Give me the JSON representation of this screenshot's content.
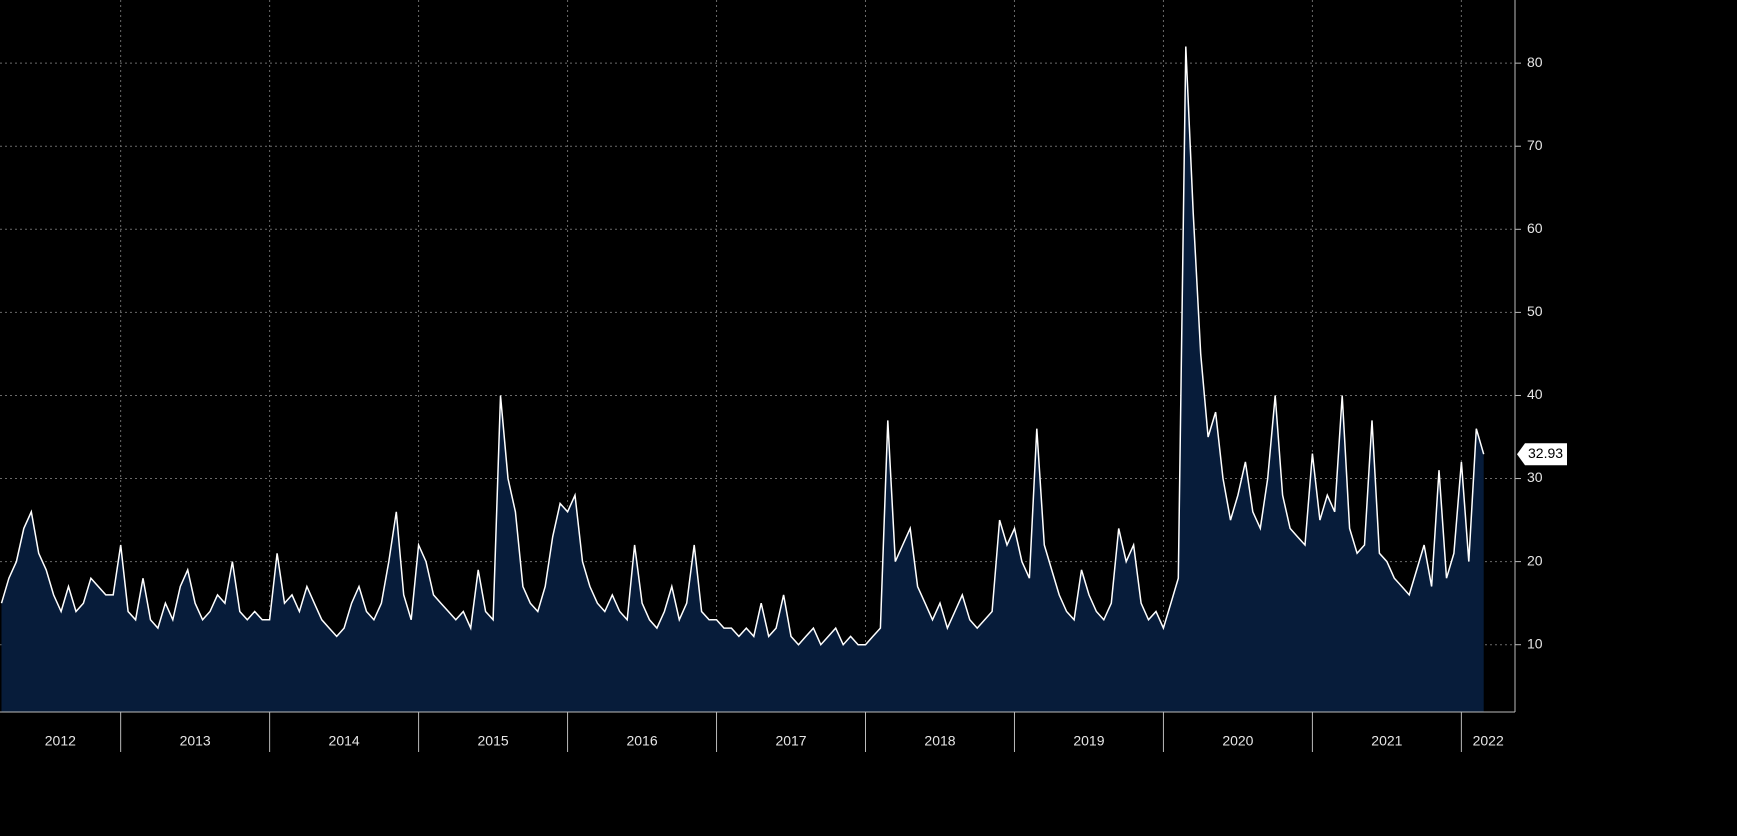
{
  "chart_data": {
    "type": "area",
    "x": [
      2012.2,
      2012.25,
      2012.3,
      2012.35,
      2012.4,
      2012.45,
      2012.5,
      2012.55,
      2012.6,
      2012.65,
      2012.7,
      2012.75,
      2012.8,
      2012.85,
      2012.9,
      2012.95,
      2013,
      2013.05,
      2013.1,
      2013.15,
      2013.2,
      2013.25,
      2013.3,
      2013.35,
      2013.4,
      2013.45,
      2013.5,
      2013.55,
      2013.6,
      2013.65,
      2013.7,
      2013.75,
      2013.8,
      2013.85,
      2013.9,
      2013.95,
      2014,
      2014.05,
      2014.1,
      2014.15,
      2014.2,
      2014.25,
      2014.3,
      2014.35,
      2014.4,
      2014.45,
      2014.5,
      2014.55,
      2014.6,
      2014.65,
      2014.7,
      2014.75,
      2014.8,
      2014.85,
      2014.9,
      2014.95,
      2015,
      2015.05,
      2015.1,
      2015.15,
      2015.2,
      2015.25,
      2015.3,
      2015.35,
      2015.4,
      2015.45,
      2015.5,
      2015.55,
      2015.6,
      2015.65,
      2015.7,
      2015.75,
      2015.8,
      2015.85,
      2015.9,
      2015.95,
      2016,
      2016.05,
      2016.1,
      2016.15,
      2016.2,
      2016.25,
      2016.3,
      2016.35,
      2016.4,
      2016.45,
      2016.5,
      2016.55,
      2016.6,
      2016.65,
      2016.7,
      2016.75,
      2016.8,
      2016.85,
      2016.9,
      2016.95,
      2017,
      2017.05,
      2017.1,
      2017.15,
      2017.2,
      2017.25,
      2017.3,
      2017.35,
      2017.4,
      2017.45,
      2017.5,
      2017.55,
      2017.6,
      2017.65,
      2017.7,
      2017.75,
      2017.8,
      2017.85,
      2017.9,
      2017.95,
      2018,
      2018.05,
      2018.1,
      2018.15,
      2018.2,
      2018.25,
      2018.3,
      2018.35,
      2018.4,
      2018.45,
      2018.5,
      2018.55,
      2018.6,
      2018.65,
      2018.7,
      2018.75,
      2018.8,
      2018.85,
      2018.9,
      2018.95,
      2019,
      2019.05,
      2019.1,
      2019.15,
      2019.2,
      2019.25,
      2019.3,
      2019.35,
      2019.4,
      2019.45,
      2019.5,
      2019.55,
      2019.6,
      2019.65,
      2019.7,
      2019.75,
      2019.8,
      2019.85,
      2019.9,
      2019.95,
      2020,
      2020.05,
      2020.1,
      2020.15,
      2020.2,
      2020.25,
      2020.3,
      2020.35,
      2020.4,
      2020.45,
      2020.5,
      2020.55,
      2020.6,
      2020.65,
      2020.7,
      2020.75,
      2020.8,
      2020.85,
      2020.9,
      2020.95,
      2021,
      2021.05,
      2021.1,
      2021.15,
      2021.2,
      2021.25,
      2021.3,
      2021.35,
      2021.4,
      2021.45,
      2021.5,
      2021.55,
      2021.6,
      2021.65,
      2021.7,
      2021.75,
      2021.8,
      2021.85,
      2021.9,
      2021.95,
      2022,
      2022.05,
      2022.1,
      2022.15
    ],
    "values": [
      15,
      18,
      20,
      24,
      26,
      21,
      19,
      16,
      14,
      17,
      14,
      15,
      18,
      17,
      16,
      16,
      22,
      14,
      13,
      18,
      13,
      12,
      15,
      13,
      17,
      19,
      15,
      13,
      14,
      16,
      15,
      20,
      14,
      13,
      14,
      13,
      13,
      21,
      15,
      16,
      14,
      17,
      15,
      13,
      12,
      11,
      12,
      15,
      17,
      14,
      13,
      15,
      20,
      26,
      16,
      13,
      22,
      20,
      16,
      15,
      14,
      13,
      14,
      12,
      19,
      14,
      13,
      40,
      30,
      26,
      17,
      15,
      14,
      17,
      23,
      27,
      26,
      28,
      20,
      17,
      15,
      14,
      16,
      14,
      13,
      22,
      15,
      13,
      12,
      14,
      17,
      13,
      15,
      22,
      14,
      13,
      13,
      12,
      12,
      11,
      12,
      11,
      15,
      11,
      12,
      16,
      11,
      10,
      11,
      12,
      10,
      11,
      12,
      10,
      11,
      10,
      10,
      11,
      12,
      37,
      20,
      22,
      24,
      17,
      15,
      13,
      15,
      12,
      14,
      16,
      13,
      12,
      13,
      14,
      25,
      22,
      24,
      20,
      18,
      36,
      22,
      19,
      16,
      14,
      13,
      19,
      16,
      14,
      13,
      15,
      24,
      20,
      22,
      15,
      13,
      14,
      12,
      15,
      18,
      82,
      62,
      45,
      35,
      38,
      30,
      25,
      28,
      32,
      26,
      24,
      30,
      40,
      28,
      24,
      23,
      22,
      33,
      25,
      28,
      26,
      40,
      24,
      21,
      22,
      37,
      21,
      20,
      18,
      17,
      16,
      19,
      22,
      17,
      31,
      18,
      21,
      32,
      20,
      36,
      32.93
    ],
    "line_color": "#ffffff",
    "fill_color": "#071c3a",
    "xlim": [
      2012.19,
      2022.36
    ],
    "xticks": [
      2012,
      2013,
      2014,
      2015,
      2016,
      2017,
      2018,
      2019,
      2020,
      2021,
      2022
    ],
    "ylim": [
      1.9,
      87.6
    ],
    "yticks": [
      10,
      20,
      30,
      40,
      50,
      60,
      70,
      80
    ],
    "grid": true
  }
}
